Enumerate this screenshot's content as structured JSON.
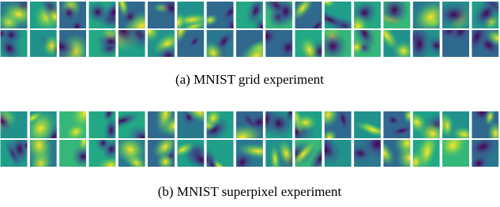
{
  "figure": {
    "panels": [
      {
        "caption": "(a) MNIST grid experiment"
      },
      {
        "caption": "(b) MNIST superpixel experiment"
      }
    ]
  }
}
